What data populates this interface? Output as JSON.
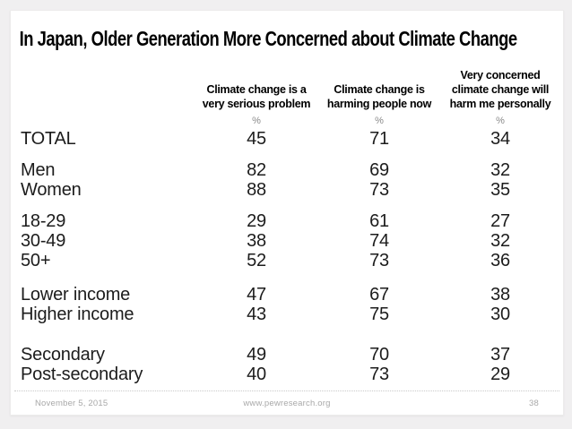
{
  "title": "In Japan, Older Generation More Concerned about Climate Change",
  "table": {
    "columns": [
      {
        "header": "Climate change is a\nvery serious problem",
        "unit": "%"
      },
      {
        "header": "Climate change is\nharming people now",
        "unit": "%"
      },
      {
        "header": "Very concerned\nclimate change will\nharm me personally",
        "unit": "%"
      }
    ],
    "groups": [
      {
        "rows": [
          {
            "label": "TOTAL",
            "values": [
              "45",
              "71",
              "34"
            ]
          }
        ]
      },
      {
        "rows": [
          {
            "label": "Men",
            "values": [
              "82",
              "69",
              "32"
            ]
          },
          {
            "label": "Women",
            "values": [
              "88",
              "73",
              "35"
            ]
          }
        ]
      },
      {
        "rows": [
          {
            "label": "18-29",
            "values": [
              "29",
              "61",
              "27"
            ]
          },
          {
            "label": "30-49",
            "values": [
              "38",
              "74",
              "32"
            ]
          },
          {
            "label": "50+",
            "values": [
              "52",
              "73",
              "36"
            ]
          }
        ]
      },
      {
        "rows": [
          {
            "label": "Lower income",
            "values": [
              "47",
              "67",
              "38"
            ]
          },
          {
            "label": "Higher income",
            "values": [
              "43",
              "75",
              "30"
            ]
          }
        ]
      },
      {
        "rows": [
          {
            "label": "Secondary",
            "values": [
              "49",
              "70",
              "37"
            ]
          },
          {
            "label": "Post-secondary",
            "values": [
              "40",
              "73",
              "29"
            ]
          }
        ]
      }
    ]
  },
  "footer": {
    "date": "November 5, 2015",
    "site": "www.pewresearch.org",
    "page": "38"
  },
  "colors": {
    "frame_background": "#f0eff0",
    "card": "#ffffff",
    "text": "#1c1c1c",
    "unit_gray": "#8a8a8a",
    "footer_gray": "#a8a8a8"
  },
  "chart_data": {
    "type": "table",
    "title": "In Japan, Older Generation More Concerned about Climate Change",
    "columns": [
      "Climate change is a very serious problem (%)",
      "Climate change is harming people now (%)",
      "Very concerned climate change will harm me personally (%)"
    ],
    "rows": [
      {
        "label": "TOTAL",
        "values": [
          45,
          71,
          34
        ]
      },
      {
        "label": "Men",
        "values": [
          82,
          69,
          32
        ]
      },
      {
        "label": "Women",
        "values": [
          88,
          73,
          35
        ]
      },
      {
        "label": "18-29",
        "values": [
          29,
          61,
          27
        ]
      },
      {
        "label": "30-49",
        "values": [
          38,
          74,
          32
        ]
      },
      {
        "label": "50+",
        "values": [
          52,
          73,
          36
        ]
      },
      {
        "label": "Lower income",
        "values": [
          47,
          67,
          38
        ]
      },
      {
        "label": "Higher income",
        "values": [
          43,
          75,
          30
        ]
      },
      {
        "label": "Secondary",
        "values": [
          49,
          70,
          37
        ]
      },
      {
        "label": "Post-secondary",
        "values": [
          40,
          73,
          29
        ]
      }
    ],
    "footer": {
      "date": "November 5, 2015",
      "site": "www.pewresearch.org",
      "page": "38"
    }
  }
}
